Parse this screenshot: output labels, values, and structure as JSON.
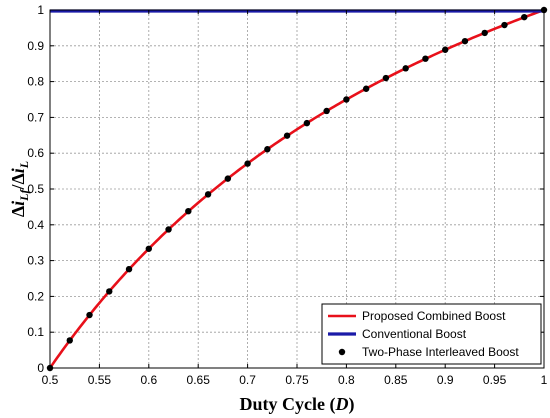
{
  "chart_data": {
    "type": "line",
    "xlabel": {
      "main": "Duty Cycle (",
      "var": "D",
      "tail": ")"
    },
    "ylabel": {
      "num": "i",
      "num_sub": "Lf",
      "den": "i",
      "den_sub": "L"
    },
    "xlim": [
      0.5,
      1.0
    ],
    "ylim": [
      0,
      1
    ],
    "xticks": [
      0.5,
      0.55,
      0.6,
      0.65,
      0.7,
      0.75,
      0.8,
      0.85,
      0.9,
      0.95,
      1
    ],
    "xtick_labels": [
      "0.5",
      "0.55",
      "0.6",
      "0.65",
      "0.7",
      "0.75",
      "0.8",
      "0.85",
      "0.9",
      "0.95",
      "1"
    ],
    "yticks": [
      0,
      0.1,
      0.2,
      0.3,
      0.4,
      0.5,
      0.6,
      0.7,
      0.8,
      0.9,
      1
    ],
    "ytick_labels": [
      "0",
      "0.1",
      "0.2",
      "0.3",
      "0.4",
      "0.5",
      "0.6",
      "0.7",
      "0.8",
      "0.9",
      "1"
    ],
    "grid": true,
    "legend_position": "bottom-right",
    "series": [
      {
        "name": "Proposed Combined Boost",
        "color": "#e8101a",
        "style": "line",
        "x": [
          0.5,
          0.52,
          0.54,
          0.56,
          0.58,
          0.6,
          0.62,
          0.64,
          0.66,
          0.68,
          0.7,
          0.72,
          0.74,
          0.76,
          0.78,
          0.8,
          0.82,
          0.84,
          0.86,
          0.88,
          0.9,
          0.92,
          0.94,
          0.96,
          0.98,
          1.0
        ],
        "y": [
          0,
          0.077,
          0.148,
          0.214,
          0.276,
          0.333,
          0.387,
          0.438,
          0.485,
          0.529,
          0.571,
          0.611,
          0.649,
          0.684,
          0.718,
          0.75,
          0.78,
          0.81,
          0.837,
          0.864,
          0.889,
          0.913,
          0.936,
          0.958,
          0.98,
          1.0
        ]
      },
      {
        "name": "Conventional Boost",
        "color": "#1a1aa8",
        "style": "line",
        "x": [
          0.5,
          1.0
        ],
        "y": [
          1,
          1
        ]
      },
      {
        "name": "Two-Phase Interleaved Boost",
        "color": "#000000",
        "style": "marker",
        "x": [
          0.5,
          0.52,
          0.54,
          0.56,
          0.58,
          0.6,
          0.62,
          0.64,
          0.66,
          0.68,
          0.7,
          0.72,
          0.74,
          0.76,
          0.78,
          0.8,
          0.82,
          0.84,
          0.86,
          0.88,
          0.9,
          0.92,
          0.94,
          0.96,
          0.98,
          1.0
        ],
        "y": [
          0,
          0.077,
          0.148,
          0.214,
          0.276,
          0.333,
          0.387,
          0.438,
          0.485,
          0.529,
          0.571,
          0.611,
          0.649,
          0.684,
          0.718,
          0.75,
          0.78,
          0.81,
          0.837,
          0.864,
          0.889,
          0.913,
          0.936,
          0.958,
          0.98,
          1.0
        ]
      }
    ]
  }
}
